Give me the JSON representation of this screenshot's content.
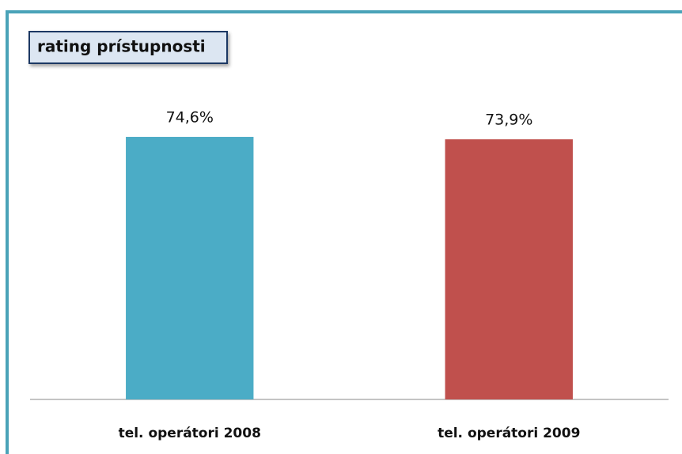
{
  "chart_data": {
    "type": "bar",
    "title": "rating prístupnosti",
    "categories": [
      "tel. operátori 2008",
      "tel. operátori 2009"
    ],
    "values": [
      74.6,
      73.9
    ],
    "value_labels": [
      "74,6%",
      "73,9%"
    ],
    "colors": [
      "#4bacc6",
      "#c0504d"
    ],
    "ylim": [
      0,
      100
    ]
  }
}
